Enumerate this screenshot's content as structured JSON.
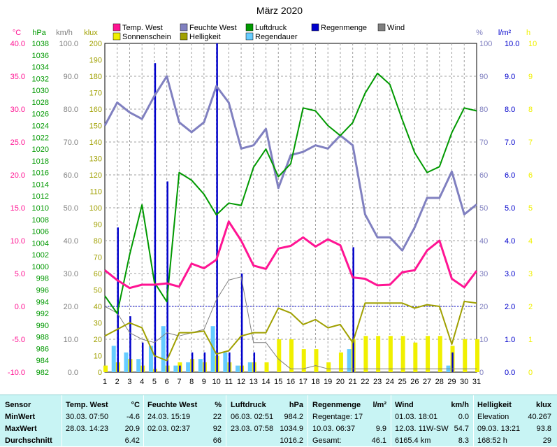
{
  "chart_data": {
    "type": "line",
    "title": "März 2020",
    "x": [
      1,
      2,
      3,
      4,
      5,
      6,
      7,
      8,
      9,
      10,
      11,
      12,
      13,
      14,
      15,
      16,
      17,
      18,
      19,
      20,
      21,
      22,
      23,
      24,
      25,
      26,
      27,
      28,
      29,
      30,
      31
    ],
    "legend": [
      {
        "label": "Temp. West",
        "color": "#ff1493"
      },
      {
        "label": "Feuchte West",
        "color": "#8080c0"
      },
      {
        "label": "Luftdruck",
        "color": "#009900"
      },
      {
        "label": "Regenmenge",
        "color": "#0000cc"
      },
      {
        "label": "Wind",
        "color": "#808080"
      },
      {
        "label": "Sonnenschein",
        "color": "#f0f000"
      },
      {
        "label": "Helligkeit",
        "color": "#a0a000"
      },
      {
        "label": "Regendauer",
        "color": "#66ccff"
      }
    ],
    "axes": [
      {
        "unit": "°C",
        "color": "#ff1493",
        "ticks": [
          "40.0",
          "35.0",
          "30.0",
          "25.0",
          "20.0",
          "15.0",
          "10.0",
          "5.0",
          "0.0",
          "-5.0",
          "-10.0"
        ]
      },
      {
        "unit": "hPa",
        "color": "#009900",
        "ticks": [
          "1038",
          "1036",
          "1034",
          "1032",
          "1030",
          "1028",
          "1026",
          "1024",
          "1022",
          "1020",
          "1018",
          "1016",
          "1014",
          "1012",
          "1010",
          "1008",
          "1006",
          "1004",
          "1002",
          "1000",
          "998",
          "996",
          "994",
          "992",
          "990",
          "988",
          "986",
          "984",
          "982"
        ]
      },
      {
        "unit": "km/h",
        "color": "#808080",
        "ticks": [
          "100.0",
          "90.0",
          "80.0",
          "70.0",
          "60.0",
          "50.0",
          "40.0",
          "30.0",
          "20.0",
          "10.0",
          "0.0"
        ]
      },
      {
        "unit": "klux",
        "color": "#a0a000",
        "ticks": [
          "200",
          "190",
          "180",
          "170",
          "160",
          "150",
          "140",
          "130",
          "120",
          "110",
          "100",
          "90",
          "80",
          "70",
          "60",
          "50",
          "40",
          "30",
          "20",
          "10",
          "0"
        ]
      },
      {
        "unit": "%",
        "color": "#8080c0",
        "ticks": [
          "100",
          "90",
          "80",
          "70",
          "60",
          "50",
          "40",
          "30",
          "20",
          "10",
          "0"
        ]
      },
      {
        "unit": "l/m²",
        "color": "#0000cc",
        "ticks": [
          "10.0",
          "9.0",
          "8.0",
          "7.0",
          "6.0",
          "5.0",
          "4.0",
          "3.0",
          "2.0",
          "1.0",
          "0.0"
        ]
      },
      {
        "unit": "h",
        "color": "#f0f000",
        "ticks": [
          "10",
          "9",
          "8",
          "7",
          "6",
          "5",
          "4",
          "3",
          "2",
          "1",
          "0"
        ]
      }
    ],
    "series": [
      {
        "name": "Temp. West",
        "unit": "°C",
        "ylim": [
          -10,
          40
        ],
        "color": "#ff1493",
        "values": [
          5.5,
          4.0,
          2.8,
          3.3,
          3.3,
          3.5,
          3.0,
          6.5,
          5.8,
          7.1,
          12.9,
          10.0,
          6.2,
          5.7,
          8.8,
          9.2,
          10.5,
          9.1,
          10.2,
          9.3,
          4.4,
          4.2,
          3.2,
          3.3,
          5.2,
          5.5,
          8.5,
          10.0,
          4.2,
          2.9,
          5.4
        ]
      },
      {
        "name": "Feuchte West",
        "unit": "%",
        "ylim": [
          0,
          100
        ],
        "color": "#8080c0",
        "values": [
          75,
          82,
          79,
          77,
          84,
          90,
          76,
          73,
          76,
          87,
          82,
          68,
          69,
          74,
          56,
          66,
          67,
          69,
          68,
          72,
          69,
          48,
          41,
          41,
          37,
          44,
          53,
          53,
          61,
          48,
          51
        ]
      },
      {
        "name": "Luftdruck",
        "unit": "hPa",
        "ylim": [
          982,
          1038
        ],
        "color": "#009900",
        "values": [
          995.0,
          992.0,
          1002.0,
          1010.5,
          997.3,
          994.0,
          1016.0,
          1014.7,
          1012.3,
          1008.8,
          1010.8,
          1010.4,
          1016.9,
          1020.0,
          1015.3,
          1017.5,
          1027.0,
          1026.5,
          1024.0,
          1022.3,
          1024.5,
          1029.5,
          1032.9,
          1031.0,
          1025.0,
          1019.4,
          1016.0,
          1017.0,
          1022.8,
          1027.0,
          1026.5
        ]
      },
      {
        "name": "Wind",
        "unit": "km/h",
        "ylim": [
          0,
          100
        ],
        "color": "#808080",
        "values": [
          20,
          18,
          12,
          10,
          9,
          12,
          11,
          12,
          13,
          22,
          28,
          29,
          9,
          9,
          4,
          1,
          1,
          2,
          1,
          1,
          1,
          1,
          1,
          1,
          1,
          1,
          1,
          1,
          1,
          1,
          1
        ]
      },
      {
        "name": "Helligkeit",
        "unit": "klux",
        "ylim": [
          0,
          200
        ],
        "color": "#a0a000",
        "values": [
          22,
          26,
          30,
          27,
          10,
          7,
          24,
          24,
          25,
          11,
          13,
          22,
          24,
          24,
          39,
          36,
          29,
          32,
          27,
          29,
          18,
          42,
          42,
          42,
          42,
          39,
          41,
          40,
          17,
          43,
          42
        ]
      },
      {
        "name": "Regenmenge",
        "unit": "l/m²",
        "ylim": [
          0,
          10
        ],
        "color": "#0000cc",
        "values": [
          0.0,
          4.4,
          1.7,
          0.9,
          9.4,
          5.8,
          0.2,
          0.6,
          0.6,
          10.0,
          0.6,
          3.0,
          0.6,
          0.0,
          0.0,
          0.0,
          0.0,
          0.0,
          0.0,
          0.0,
          3.8,
          0.0,
          0.0,
          0.0,
          0.0,
          0.0,
          0.0,
          0.0,
          0.6,
          0.0,
          0.0
        ]
      },
      {
        "name": "Regendauer",
        "unit": "h",
        "ylim": [
          0,
          10
        ],
        "color": "#66ccff",
        "values": [
          0.0,
          0.8,
          0.6,
          0.4,
          0.8,
          1.4,
          0.2,
          0.3,
          0.4,
          1.4,
          0.6,
          0.2,
          0.3,
          0.0,
          0.0,
          0.0,
          0.0,
          0.0,
          0.0,
          0.0,
          0.7,
          0.0,
          0.0,
          0.0,
          0.0,
          0.0,
          0.0,
          0.0,
          0.2,
          0.0,
          0.0
        ]
      },
      {
        "name": "Sonnenschein",
        "unit": "h",
        "ylim": [
          0,
          10
        ],
        "color": "#f0f000",
        "values": [
          0.2,
          0.3,
          0.4,
          0.2,
          0.1,
          0.2,
          0.3,
          0.4,
          0.3,
          0.5,
          0.3,
          0.2,
          0.3,
          0.3,
          1.0,
          1.0,
          0.7,
          0.7,
          0.3,
          0.6,
          1.0,
          1.1,
          1.1,
          1.1,
          1.1,
          0.9,
          1.1,
          1.1,
          0.8,
          1.0,
          1.0
        ]
      }
    ]
  },
  "summary": {
    "labels": {
      "sensor": "Sensor",
      "min": "MinWert",
      "max": "MaxWert",
      "avg": "Durchschnitt"
    },
    "temp": {
      "title": "Temp. West",
      "unit": "°C",
      "min_time": "30.03.  07:50",
      "min_val": "-4.6",
      "max_time": "28.03.  14:23",
      "max_val": "20.9",
      "avg": "6.42"
    },
    "hum": {
      "title": "Feuchte West",
      "unit": "%",
      "min_time": "24.03.  15:19",
      "min_val": "22",
      "max_time": "02.03.  02:37",
      "max_val": "92",
      "avg": "66"
    },
    "press": {
      "title": "Luftdruck",
      "unit": "hPa",
      "min_time": "06.03.  02:51",
      "min_val": "984.2",
      "max_time": "23.03.  07:58",
      "max_val": "1034.9",
      "avg": "1016.2"
    },
    "rain": {
      "title": "Regenmenge",
      "unit": "l/m²",
      "row1": "Regentage: 17",
      "row2_time": "10.03.  06:37",
      "row2_val": "9.9",
      "row3_label": "Gesamt:",
      "row3_val": "46.1"
    },
    "wind": {
      "title": "Wind",
      "unit": "km/h",
      "row1_time": "01.03.  18:01",
      "row1_val": "0.0",
      "row2_time": "12.03.  11W-SW",
      "row2_val": "54.7",
      "row3_label": "6165.4 km",
      "row3_val": "8.3"
    },
    "light": {
      "title": "Helligkeit",
      "unit": "klux",
      "row1_label": "Elevation",
      "row1_val": "40.267",
      "row2_time": "09.03.  13:21",
      "row2_val": "93.8",
      "row3_label": "168:52 h",
      "row3_val": "29"
    }
  }
}
